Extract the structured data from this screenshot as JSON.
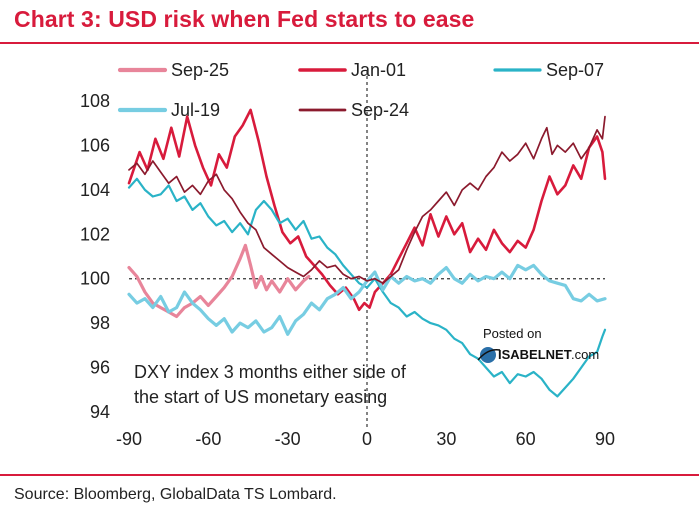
{
  "title": "Chart 3: USD risk when Fed starts to ease",
  "source": "Source: Bloomberg, GlobalData TS Lombard.",
  "watermark": {
    "line1": "Posted on",
    "line2": "ISABELNET",
    "line3": ".com"
  },
  "chart_data": {
    "type": "line",
    "title": "Chart 3: USD risk when Fed starts to ease",
    "annotation": [
      "DXY index 3 months either side of",
      "the start of US monetary easing"
    ],
    "xlabel": "",
    "ylabel": "",
    "xlim": [
      -90,
      90
    ],
    "ylim": [
      94,
      108
    ],
    "x_ticks": [
      -90,
      -60,
      -30,
      0,
      30,
      60,
      90
    ],
    "y_ticks": [
      94,
      96,
      98,
      100,
      102,
      104,
      106,
      108
    ],
    "grid": false,
    "reference_lines": {
      "x": 0,
      "y": 100
    },
    "legend_position": "top",
    "series": [
      {
        "name": "Sep-25",
        "color": "#e8859a",
        "width": 3.2,
        "points": [
          [
            -90,
            100.5
          ],
          [
            -87,
            100.1
          ],
          [
            -84,
            99.4
          ],
          [
            -81,
            98.9
          ],
          [
            -78,
            98.7
          ],
          [
            -75,
            98.5
          ],
          [
            -72,
            98.3
          ],
          [
            -69,
            98.7
          ],
          [
            -66,
            98.9
          ],
          [
            -63,
            99.2
          ],
          [
            -60,
            98.8
          ],
          [
            -57,
            99.2
          ],
          [
            -54,
            99.6
          ],
          [
            -51,
            100.1
          ],
          [
            -48,
            100.9
          ],
          [
            -46,
            101.5
          ],
          [
            -44,
            100.6
          ],
          [
            -42,
            99.6
          ],
          [
            -40,
            100.1
          ],
          [
            -38,
            99.5
          ],
          [
            -36,
            99.9
          ],
          [
            -33,
            99.4
          ],
          [
            -30,
            100.0
          ],
          [
            -27,
            99.5
          ],
          [
            -24,
            99.9
          ],
          [
            -22,
            100.1
          ]
        ]
      },
      {
        "name": "Jan-01",
        "color": "#d81b3c",
        "width": 2.6,
        "points": [
          [
            -90,
            104.3
          ],
          [
            -86,
            105.7
          ],
          [
            -83,
            104.9
          ],
          [
            -80,
            106.3
          ],
          [
            -77,
            105.4
          ],
          [
            -74,
            106.8
          ],
          [
            -71,
            105.5
          ],
          [
            -68,
            107.3
          ],
          [
            -65,
            106.0
          ],
          [
            -62,
            105.0
          ],
          [
            -59,
            104.2
          ],
          [
            -56,
            105.6
          ],
          [
            -53,
            105.0
          ],
          [
            -50,
            106.4
          ],
          [
            -47,
            106.9
          ],
          [
            -44,
            107.6
          ],
          [
            -41,
            106.2
          ],
          [
            -38,
            104.6
          ],
          [
            -35,
            103.3
          ],
          [
            -32,
            102.1
          ],
          [
            -29,
            101.6
          ],
          [
            -26,
            101.9
          ],
          [
            -23,
            101.0
          ],
          [
            -20,
            100.6
          ],
          [
            -17,
            100.2
          ],
          [
            -14,
            99.7
          ],
          [
            -11,
            99.3
          ],
          [
            -8,
            99.6
          ],
          [
            -5,
            99.1
          ],
          [
            -3,
            98.6
          ],
          [
            -1,
            98.9
          ],
          [
            1,
            98.7
          ],
          [
            3,
            99.4
          ],
          [
            6,
            99.8
          ],
          [
            9,
            100.2
          ],
          [
            12,
            100.9
          ],
          [
            15,
            101.6
          ],
          [
            18,
            102.3
          ],
          [
            21,
            101.5
          ],
          [
            24,
            102.9
          ],
          [
            27,
            101.9
          ],
          [
            30,
            102.8
          ],
          [
            33,
            102.0
          ],
          [
            36,
            102.5
          ],
          [
            39,
            101.2
          ],
          [
            42,
            101.8
          ],
          [
            45,
            101.3
          ],
          [
            48,
            102.2
          ],
          [
            51,
            101.6
          ],
          [
            54,
            101.2
          ],
          [
            57,
            101.7
          ],
          [
            60,
            101.4
          ],
          [
            63,
            102.2
          ],
          [
            66,
            103.5
          ],
          [
            69,
            104.6
          ],
          [
            72,
            103.8
          ],
          [
            75,
            104.2
          ],
          [
            78,
            105.1
          ],
          [
            81,
            104.5
          ],
          [
            84,
            105.9
          ],
          [
            87,
            106.4
          ],
          [
            89,
            105.7
          ],
          [
            90,
            104.5
          ]
        ]
      },
      {
        "name": "Sep-07",
        "color": "#2ab3c7",
        "width": 2.2,
        "points": [
          [
            -90,
            104.1
          ],
          [
            -87,
            104.5
          ],
          [
            -84,
            104.0
          ],
          [
            -81,
            103.7
          ],
          [
            -78,
            103.8
          ],
          [
            -75,
            104.2
          ],
          [
            -72,
            103.5
          ],
          [
            -69,
            103.7
          ],
          [
            -66,
            103.1
          ],
          [
            -63,
            103.4
          ],
          [
            -60,
            102.8
          ],
          [
            -57,
            102.4
          ],
          [
            -54,
            102.6
          ],
          [
            -51,
            102.1
          ],
          [
            -48,
            102.5
          ],
          [
            -45,
            102.0
          ],
          [
            -42,
            103.1
          ],
          [
            -39,
            103.5
          ],
          [
            -36,
            103.1
          ],
          [
            -33,
            102.5
          ],
          [
            -30,
            102.7
          ],
          [
            -27,
            102.2
          ],
          [
            -24,
            102.6
          ],
          [
            -21,
            101.8
          ],
          [
            -18,
            101.9
          ],
          [
            -15,
            101.4
          ],
          [
            -12,
            101.1
          ],
          [
            -9,
            100.6
          ],
          [
            -6,
            100.2
          ],
          [
            -3,
            99.8
          ],
          [
            0,
            99.6
          ],
          [
            3,
            100.0
          ],
          [
            6,
            99.4
          ],
          [
            9,
            98.9
          ],
          [
            12,
            98.7
          ],
          [
            15,
            98.3
          ],
          [
            18,
            98.5
          ],
          [
            21,
            98.2
          ],
          [
            24,
            98.0
          ],
          [
            27,
            97.9
          ],
          [
            30,
            97.7
          ],
          [
            33,
            97.3
          ],
          [
            36,
            97.1
          ],
          [
            39,
            96.6
          ],
          [
            42,
            96.4
          ],
          [
            45,
            96.0
          ],
          [
            48,
            95.6
          ],
          [
            51,
            95.8
          ],
          [
            54,
            95.3
          ],
          [
            57,
            95.7
          ],
          [
            60,
            95.6
          ],
          [
            63,
            95.8
          ],
          [
            66,
            95.5
          ],
          [
            69,
            95.0
          ],
          [
            72,
            94.7
          ],
          [
            75,
            95.1
          ],
          [
            78,
            95.5
          ],
          [
            81,
            96.0
          ],
          [
            84,
            96.5
          ],
          [
            87,
            96.7
          ],
          [
            89,
            97.4
          ],
          [
            90,
            97.7
          ]
        ]
      },
      {
        "name": "Jul-19",
        "color": "#77cde2",
        "width": 3.2,
        "points": [
          [
            -90,
            99.3
          ],
          [
            -87,
            98.9
          ],
          [
            -84,
            99.1
          ],
          [
            -81,
            98.7
          ],
          [
            -78,
            99.2
          ],
          [
            -75,
            98.5
          ],
          [
            -72,
            98.7
          ],
          [
            -69,
            99.4
          ],
          [
            -66,
            98.9
          ],
          [
            -63,
            98.6
          ],
          [
            -60,
            98.2
          ],
          [
            -57,
            97.9
          ],
          [
            -54,
            98.2
          ],
          [
            -51,
            97.6
          ],
          [
            -48,
            98.0
          ],
          [
            -45,
            97.8
          ],
          [
            -42,
            98.1
          ],
          [
            -39,
            97.6
          ],
          [
            -36,
            97.8
          ],
          [
            -33,
            98.3
          ],
          [
            -30,
            97.5
          ],
          [
            -27,
            98.1
          ],
          [
            -24,
            98.4
          ],
          [
            -21,
            98.9
          ],
          [
            -18,
            98.6
          ],
          [
            -15,
            99.1
          ],
          [
            -12,
            99.3
          ],
          [
            -9,
            99.6
          ],
          [
            -6,
            99.1
          ],
          [
            -3,
            99.4
          ],
          [
            0,
            99.9
          ],
          [
            3,
            100.3
          ],
          [
            6,
            99.5
          ],
          [
            9,
            100.1
          ],
          [
            12,
            99.8
          ],
          [
            15,
            100.1
          ],
          [
            18,
            99.9
          ],
          [
            21,
            100.0
          ],
          [
            24,
            99.8
          ],
          [
            27,
            100.2
          ],
          [
            30,
            100.5
          ],
          [
            33,
            100.0
          ],
          [
            36,
            99.8
          ],
          [
            39,
            100.2
          ],
          [
            42,
            99.9
          ],
          [
            45,
            100.1
          ],
          [
            48,
            100.0
          ],
          [
            51,
            100.3
          ],
          [
            54,
            100.0
          ],
          [
            57,
            100.6
          ],
          [
            60,
            100.4
          ],
          [
            63,
            100.6
          ],
          [
            66,
            100.2
          ],
          [
            69,
            99.9
          ],
          [
            72,
            99.8
          ],
          [
            75,
            99.7
          ],
          [
            78,
            99.1
          ],
          [
            81,
            99.0
          ],
          [
            84,
            99.3
          ],
          [
            87,
            99.0
          ],
          [
            90,
            99.1
          ]
        ]
      },
      {
        "name": "Sep-24",
        "color": "#8b1a2d",
        "width": 1.7,
        "points": [
          [
            -90,
            104.9
          ],
          [
            -87,
            105.2
          ],
          [
            -84,
            104.7
          ],
          [
            -81,
            105.3
          ],
          [
            -78,
            104.8
          ],
          [
            -75,
            104.3
          ],
          [
            -72,
            104.6
          ],
          [
            -69,
            103.9
          ],
          [
            -66,
            104.2
          ],
          [
            -63,
            103.8
          ],
          [
            -60,
            104.4
          ],
          [
            -57,
            104.7
          ],
          [
            -54,
            104.0
          ],
          [
            -51,
            103.6
          ],
          [
            -48,
            103.0
          ],
          [
            -45,
            102.5
          ],
          [
            -42,
            102.2
          ],
          [
            -39,
            101.4
          ],
          [
            -36,
            101.1
          ],
          [
            -33,
            100.8
          ],
          [
            -30,
            100.5
          ],
          [
            -27,
            100.3
          ],
          [
            -24,
            100.1
          ],
          [
            -21,
            100.4
          ],
          [
            -18,
            100.8
          ],
          [
            -15,
            100.5
          ],
          [
            -12,
            100.6
          ],
          [
            -9,
            100.2
          ],
          [
            -6,
            100.0
          ],
          [
            -3,
            100.1
          ],
          [
            0,
            99.9
          ],
          [
            3,
            100.0
          ],
          [
            6,
            99.8
          ],
          [
            9,
            100.1
          ],
          [
            12,
            100.4
          ],
          [
            15,
            101.3
          ],
          [
            18,
            102.1
          ],
          [
            21,
            102.8
          ],
          [
            24,
            103.1
          ],
          [
            27,
            103.5
          ],
          [
            30,
            103.9
          ],
          [
            33,
            103.3
          ],
          [
            36,
            104.0
          ],
          [
            39,
            104.3
          ],
          [
            42,
            104.0
          ],
          [
            45,
            104.6
          ],
          [
            48,
            105.0
          ],
          [
            51,
            105.7
          ],
          [
            54,
            105.3
          ],
          [
            57,
            105.6
          ],
          [
            60,
            106.1
          ],
          [
            63,
            105.4
          ],
          [
            66,
            106.3
          ],
          [
            68,
            106.8
          ],
          [
            70,
            105.6
          ],
          [
            72,
            106.0
          ],
          [
            75,
            105.7
          ],
          [
            78,
            106.1
          ],
          [
            81,
            105.4
          ],
          [
            84,
            105.9
          ],
          [
            87,
            106.7
          ],
          [
            89,
            106.3
          ],
          [
            90,
            107.3
          ]
        ]
      }
    ]
  }
}
